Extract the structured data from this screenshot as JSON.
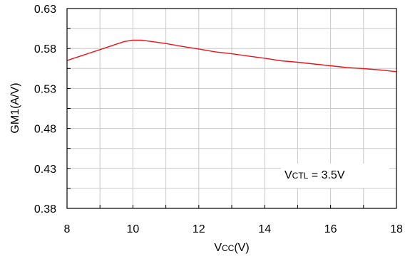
{
  "chart_data": {
    "type": "line",
    "title": "",
    "xlabel": {
      "main": "V",
      "sub": "CC",
      "suffix": "(V)"
    },
    "ylabel": "GM1(A/V)",
    "xlim": [
      8,
      18
    ],
    "ylim": [
      0.38,
      0.63
    ],
    "x_ticks": [
      8,
      10,
      12,
      14,
      16,
      18
    ],
    "x_tick_labels": [
      "8",
      "10",
      "12",
      "14",
      "16",
      "18"
    ],
    "x_grid_step": 1,
    "y_ticks": [
      0.38,
      0.43,
      0.48,
      0.53,
      0.58,
      0.63
    ],
    "y_tick_labels": [
      "0.38",
      "0.43",
      "0.48",
      "0.53",
      "0.58",
      "0.63"
    ],
    "y_grid_step": 0.025,
    "grid": true,
    "series": [
      {
        "name": "",
        "color": "#e8141c",
        "x": [
          8,
          8.5,
          9,
          9.5,
          9.75,
          10,
          10.25,
          10.5,
          11,
          11.5,
          12,
          12.5,
          13,
          13.5,
          14,
          14.5,
          15,
          15.5,
          16,
          16.5,
          17,
          17.5,
          18
        ],
        "y": [
          0.565,
          0.5718,
          0.5786,
          0.5854,
          0.5888,
          0.5904,
          0.5904,
          0.5892,
          0.5862,
          0.5826,
          0.5794,
          0.5758,
          0.5734,
          0.5706,
          0.5678,
          0.5646,
          0.5628,
          0.5606,
          0.5584,
          0.5562,
          0.5548,
          0.5532,
          0.551
        ]
      }
    ],
    "annotation": {
      "main": "V",
      "sub": "CTL",
      "suffix": " = 3.5V"
    }
  }
}
